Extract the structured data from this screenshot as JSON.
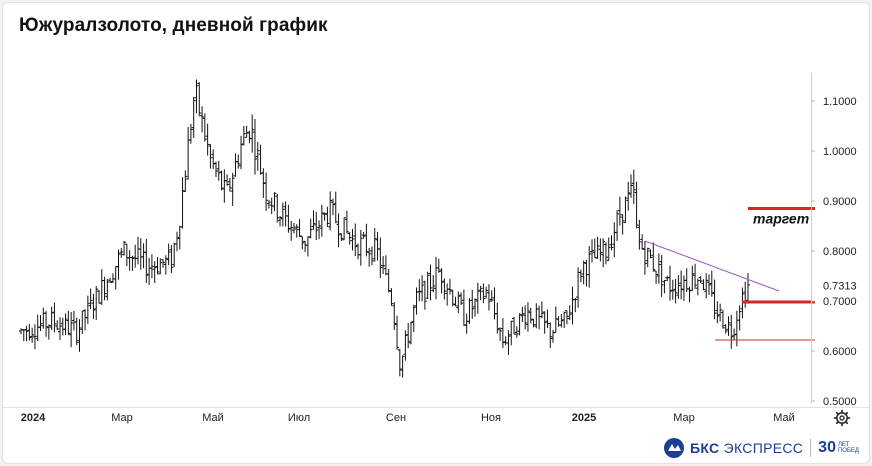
{
  "title": "Южуралзолото, дневной график",
  "colors": {
    "candles": "#111111",
    "resistance": "#9b59b6",
    "support": "#d62828",
    "target": "#d62828",
    "grid": "#ececec",
    "axis_text": "#222222"
  },
  "settings_icon": "gear-icon",
  "brand": {
    "name_bold": "БКС",
    "name_light": "ЭКСПРЕСС",
    "years": "30",
    "years_sub_1": "ЛЕТ",
    "years_sub_2": "ПОБЕД"
  },
  "chart_data": {
    "type": "bar",
    "title": "Южуралзолото, дневной график",
    "ylim": [
      0.5,
      1.14
    ],
    "y_ticks": [
      "1.1000",
      "1.0000",
      "0.9000",
      "0.8000",
      "0.7000",
      "0.6000",
      "0.5000"
    ],
    "y_tick_values": [
      1.1,
      1.0,
      0.9,
      0.8,
      0.7,
      0.6,
      0.5
    ],
    "x_labels": [
      "2024",
      "Мар",
      "Май",
      "Июл",
      "Сен",
      "Ноя",
      "2025",
      "Мар",
      "Май"
    ],
    "x_label_bold": [
      true,
      false,
      false,
      false,
      false,
      false,
      true,
      false,
      false
    ],
    "last_price": "0.7313",
    "last_price_value": 0.7313,
    "grid": false,
    "annotations": {
      "target_label": "таргет",
      "target_level": 0.885,
      "resistance_line": {
        "from": [
          "2025-02",
          0.82
        ],
        "to": [
          "2025-04",
          0.72
        ]
      },
      "support_level": 0.698,
      "low_level": 0.622
    },
    "price_path": [
      [
        0.0,
        0.64
      ],
      [
        0.04,
        0.66
      ],
      [
        0.07,
        0.64
      ],
      [
        0.1,
        0.72
      ],
      [
        0.13,
        0.8
      ],
      [
        0.16,
        0.77
      ],
      [
        0.19,
        0.78
      ],
      [
        0.2,
        0.86
      ],
      [
        0.22,
        1.12
      ],
      [
        0.24,
        0.98
      ],
      [
        0.26,
        0.91
      ],
      [
        0.28,
        1.02
      ],
      [
        0.29,
        1.05
      ],
      [
        0.31,
        0.92
      ],
      [
        0.33,
        0.87
      ],
      [
        0.36,
        0.82
      ],
      [
        0.39,
        0.88
      ],
      [
        0.42,
        0.82
      ],
      [
        0.45,
        0.8
      ],
      [
        0.47,
        0.7
      ],
      [
        0.48,
        0.57
      ],
      [
        0.5,
        0.7
      ],
      [
        0.53,
        0.76
      ],
      [
        0.56,
        0.67
      ],
      [
        0.59,
        0.72
      ],
      [
        0.61,
        0.62
      ],
      [
        0.64,
        0.68
      ],
      [
        0.67,
        0.64
      ],
      [
        0.69,
        0.66
      ],
      [
        0.71,
        0.77
      ],
      [
        0.74,
        0.8
      ],
      [
        0.76,
        0.88
      ],
      [
        0.775,
        0.92
      ],
      [
        0.78,
        0.82
      ],
      [
        0.82,
        0.73
      ],
      [
        0.86,
        0.75
      ],
      [
        0.88,
        0.68
      ],
      [
        0.9,
        0.64
      ],
      [
        0.91,
        0.7
      ],
      [
        0.92,
        0.73
      ]
    ]
  }
}
